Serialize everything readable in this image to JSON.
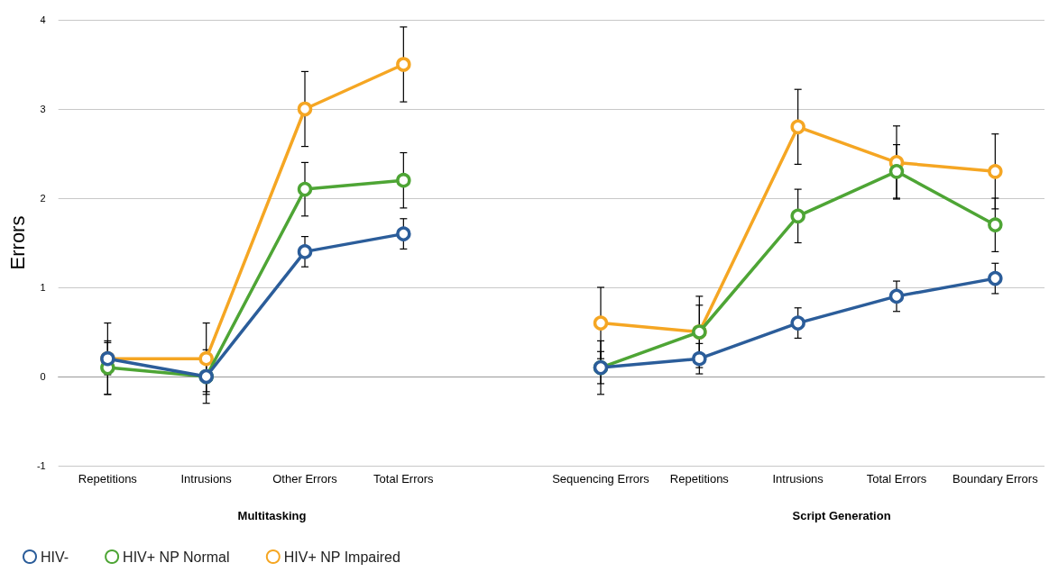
{
  "chart_data": {
    "type": "line",
    "ylabel": "Errors",
    "categories": [
      "Repetitions",
      "Intrusions",
      "Other Errors",
      "Total Errors",
      null,
      "Sequencing Errors",
      "Repetitions",
      "Intrusions",
      "Total Errors",
      "Boundary Errors"
    ],
    "series": [
      {
        "name": "HIV-",
        "color": "#2b5d9a",
        "values": [
          0.2,
          0,
          1.4,
          1.6,
          null,
          0.1,
          0.2,
          0.6,
          0.9,
          1.1
        ],
        "errors": [
          0.18,
          0.17,
          0.17,
          0.17,
          null,
          0.18,
          0.17,
          0.17,
          0.17,
          0.17
        ]
      },
      {
        "name": "HIV+ NP Normal",
        "color": "#4ea535",
        "values": [
          0.1,
          0,
          2.1,
          2.2,
          null,
          0.1,
          0.5,
          1.8,
          2.3,
          1.7
        ],
        "errors": [
          0.3,
          0.3,
          0.3,
          0.31,
          null,
          0.3,
          0.3,
          0.3,
          0.3,
          0.3
        ]
      },
      {
        "name": "HIV+ NP Impaired",
        "color": "#f5a623",
        "values": [
          0.2,
          0.2,
          3.0,
          3.5,
          null,
          0.6,
          0.5,
          2.8,
          2.4,
          2.3
        ],
        "errors": [
          0.4,
          0.4,
          0.42,
          0.42,
          null,
          0.4,
          0.4,
          0.42,
          0.41,
          0.42
        ]
      }
    ],
    "annotations": [
      "Multitasking",
      "Script Generation"
    ],
    "ylim": [
      -1,
      4
    ],
    "yticks": [
      -1,
      0,
      1,
      2,
      3,
      4
    ],
    "grid": "y",
    "legend": "bottom left",
    "marker": "circle",
    "line_style": "solid"
  }
}
